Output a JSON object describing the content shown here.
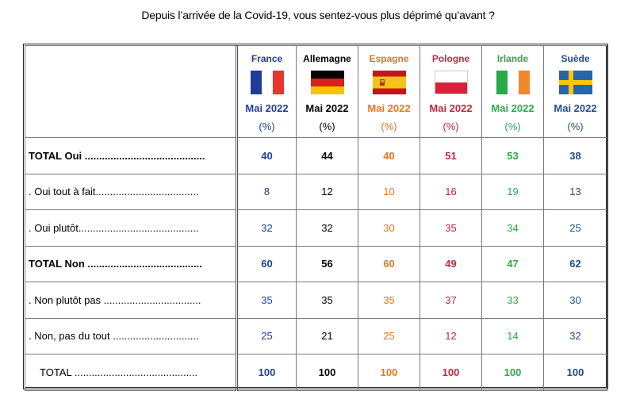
{
  "title": "Depuis l’arrivée de la Covid-19, vous sentez-vous plus déprimé qu’avant ?",
  "period": "Mai 2022",
  "unit": "(%)",
  "countries": [
    {
      "name": "France",
      "color": "#1f3f93",
      "flag": "france-flag-icon"
    },
    {
      "name": "Allemagne",
      "color": "#000000",
      "flag": "germany-flag-icon"
    },
    {
      "name": "Espagne",
      "color": "#e6771e",
      "flag": "spain-flag-icon"
    },
    {
      "name": "Pologne",
      "color": "#c0283f",
      "flag": "poland-flag-icon"
    },
    {
      "name": "Irlande",
      "color": "#2ea84a",
      "flag": "ireland-flag-icon"
    },
    {
      "name": "Suède",
      "color": "#1f4e8c",
      "flag": "sweden-flag-icon"
    }
  ],
  "rows": [
    {
      "label": "TOTAL Oui ..........................................",
      "bold": true,
      "values": [
        "40",
        "44",
        "40",
        "51",
        "53",
        "38"
      ]
    },
    {
      "label": ". Oui tout à fait....................................",
      "bold": false,
      "values": [
        "8",
        "12",
        "10",
        "16",
        "19",
        "13"
      ]
    },
    {
      "label": ". Oui plutôt..........................................",
      "bold": false,
      "values": [
        "32",
        "32",
        "30",
        "35",
        "34",
        "25"
      ]
    },
    {
      "label": "TOTAL Non ........................................",
      "bold": true,
      "values": [
        "60",
        "56",
        "60",
        "49",
        "47",
        "62"
      ]
    },
    {
      "label": ". Non plutôt pas ..................................",
      "bold": false,
      "values": [
        "35",
        "35",
        "35",
        "37",
        "33",
        "30"
      ]
    },
    {
      "label": ". Non, pas du tout ..............................",
      "bold": false,
      "values": [
        "25",
        "21",
        "25",
        "12",
        "14",
        "32"
      ]
    },
    {
      "label": "TOTAL ...........................................",
      "bold": true,
      "indent": true,
      "values": [
        "100",
        "100",
        "100",
        "100",
        "100",
        "100"
      ]
    }
  ]
}
